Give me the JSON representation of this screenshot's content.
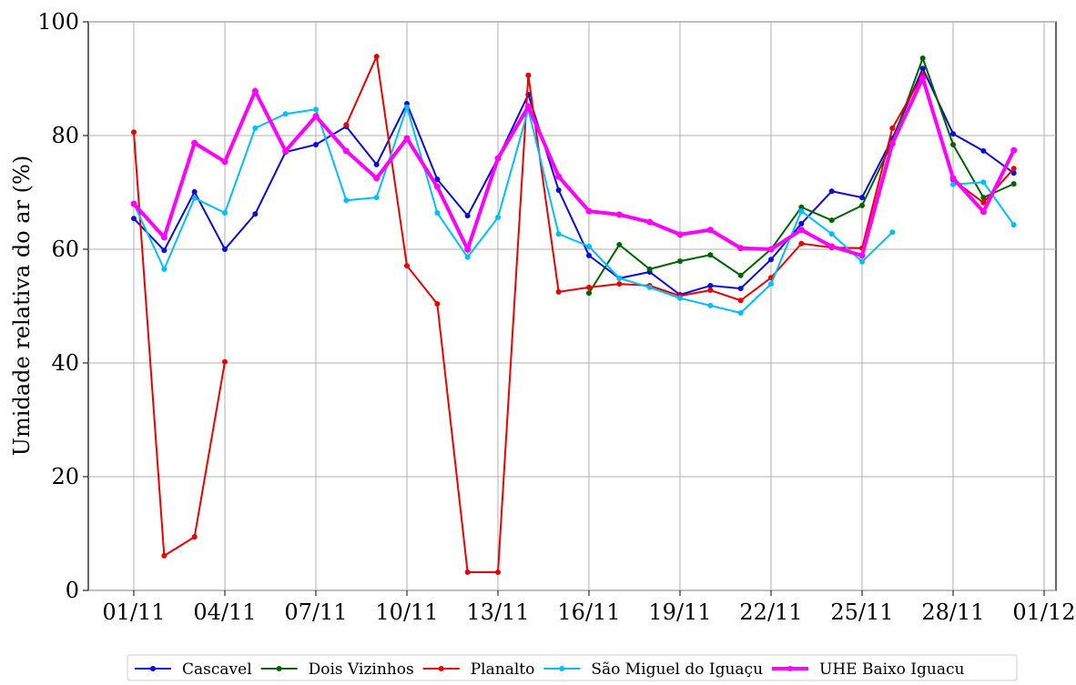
{
  "chart_data": {
    "type": "line",
    "y_label": "Umidade relativa do ar (%)",
    "x": [
      "01/11",
      "02/11",
      "03/11",
      "04/11",
      "05/11",
      "06/11",
      "07/11",
      "08/11",
      "09/11",
      "10/11",
      "11/11",
      "12/11",
      "13/11",
      "14/11",
      "15/11",
      "16/11",
      "17/11",
      "18/11",
      "19/11",
      "20/11",
      "21/11",
      "22/11",
      "23/11",
      "24/11",
      "25/11",
      "26/11",
      "27/11",
      "28/11",
      "29/11",
      "30/11"
    ],
    "xticks": [
      "01/11",
      "04/11",
      "07/11",
      "10/11",
      "13/11",
      "16/11",
      "19/11",
      "22/11",
      "25/11",
      "28/11",
      "01/12"
    ],
    "ylim": [
      0,
      100
    ],
    "yticks": [
      0,
      20,
      40,
      60,
      80,
      100
    ],
    "grid": true,
    "legend": "bottom",
    "series": [
      {
        "name": "Cascavel",
        "color": "#0a0ae0",
        "values": [
          65.4,
          59.8,
          70.1,
          60,
          66.2,
          77.1,
          78.4,
          81.6,
          74.9,
          85.6,
          72.3,
          65.9,
          76,
          87.2,
          70.4,
          58.9,
          54.9,
          56,
          52,
          53.6,
          53.1,
          58.2,
          64.5,
          70.2,
          69.1,
          79.5,
          91.8,
          80.3,
          77.3,
          73.4
        ]
      },
      {
        "name": "Dois Vizinhos",
        "color": "#006400",
        "values": [
          null,
          null,
          null,
          null,
          null,
          null,
          null,
          null,
          null,
          null,
          null,
          null,
          null,
          null,
          null,
          52.3,
          60.8,
          56.5,
          57.9,
          59,
          55.4,
          60,
          67.4,
          65.1,
          67.7,
          78.9,
          93.6,
          78.4,
          69.1,
          71.5
        ]
      },
      {
        "name": "Planalto",
        "color": "#ee0000",
        "values": [
          80.6,
          6.1,
          9.4,
          40.2,
          null,
          null,
          null,
          81.9,
          93.9,
          57.1,
          50.4,
          3.2,
          3.2,
          90.6,
          52.5,
          53.3,
          53.9,
          53.6,
          51.8,
          52.8,
          51,
          55,
          61,
          60.3,
          60.2,
          81.3,
          90.7,
          72.2,
          68.2,
          74.2
        ]
      },
      {
        "name": "São Miguel do Iguaçu",
        "color": "#00bfff",
        "values": [
          68,
          56.5,
          69,
          66.4,
          81.3,
          83.8,
          84.6,
          68.6,
          69.1,
          85,
          66.4,
          58.6,
          65.6,
          84.6,
          62.7,
          60.5,
          54.9,
          53.3,
          51.4,
          50.1,
          48.8,
          53.9,
          66.7,
          62.7,
          57.8,
          63,
          null,
          71.4,
          71.8,
          64.3
        ]
      },
      {
        "name": "UHE Baixo Iguacu",
        "color": "#ff00ff",
        "width": 4,
        "values": [
          68,
          62.1,
          78.7,
          75.4,
          87.8,
          77.3,
          83.4,
          77.3,
          72.5,
          79.5,
          71,
          60,
          76,
          85.1,
          72.8,
          66.7,
          66.1,
          64.8,
          62.6,
          63.4,
          60.2,
          60,
          63.4,
          60.5,
          58.9,
          78.6,
          90.1,
          72.5,
          66.6,
          77.4
        ]
      }
    ]
  }
}
